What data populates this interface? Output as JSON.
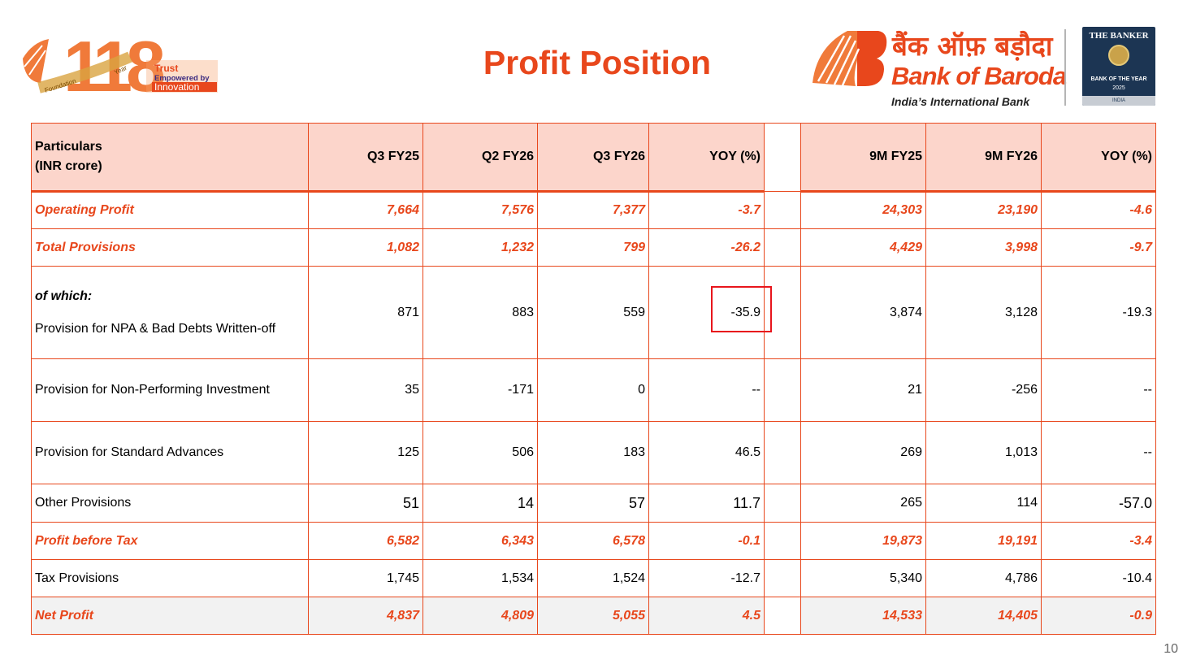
{
  "header": {
    "title": "Profit Position",
    "logo_left": {
      "number": "118",
      "words": [
        "Trust",
        "Empowered by",
        "Innovation"
      ],
      "arc_words": [
        "Foundation",
        "Year"
      ]
    },
    "bank": {
      "name_hindi": "बैंक ऑफ़ बड़ौदा",
      "name": "Bank of Baroda",
      "tagline": "India’s International Bank",
      "brand_color": "#e8471c"
    },
    "award": {
      "publisher": "THE BANKER",
      "award": "BANK OF THE YEAR",
      "year": "2025",
      "country": "INDIA"
    }
  },
  "table": {
    "columns": [
      "Q3 FY25",
      "Q2 FY26",
      "Q3 FY26",
      "YOY (%)",
      "9M FY25",
      "9M FY26",
      "YOY (%)"
    ],
    "header_label_line1": "Particulars",
    "header_label_line2": "(INR crore)",
    "rows": [
      {
        "label": "Operating Profit",
        "highlight": true,
        "values": [
          "7,664",
          "7,576",
          "7,377",
          "-3.7",
          "24,303",
          "23,190",
          "-4.6"
        ]
      },
      {
        "label": "Total Provisions",
        "highlight": true,
        "values": [
          "1,082",
          "1,232",
          "799",
          "-26.2",
          "4,429",
          "3,998",
          "-9.7"
        ]
      },
      {
        "label_prefix": "of which:",
        "label": "Provision for NPA & Bad Debts Written-off",
        "highlight": false,
        "values": [
          "871",
          "883",
          "559",
          "-35.9",
          "3,874",
          "3,128",
          "-19.3"
        ]
      },
      {
        "label": "Provision for Non-Performing Investment",
        "highlight": false,
        "values": [
          "35",
          "-171",
          "0",
          "--",
          "21",
          "-256",
          "--"
        ]
      },
      {
        "label": "Provision for Standard Advances",
        "highlight": false,
        "values": [
          "125",
          "506",
          "183",
          "46.5",
          "269",
          "1,013",
          "--"
        ]
      },
      {
        "label": "Other Provisions",
        "highlight": false,
        "values": [
          "51",
          "14",
          "57",
          "11.7",
          "265",
          "114",
          "-57.0"
        ]
      },
      {
        "label": "Profit before Tax",
        "highlight": true,
        "values": [
          "6,582",
          "6,343",
          "6,578",
          "-0.1",
          "19,873",
          "19,191",
          "-3.4"
        ]
      },
      {
        "label": "Tax Provisions",
        "highlight": false,
        "values": [
          "1,745",
          "1,534",
          "1,524",
          "-12.7",
          "5,340",
          "4,786",
          "-10.4"
        ]
      },
      {
        "label": "Net Profit",
        "highlight": true,
        "values": [
          "4,837",
          "4,809",
          "5,055",
          "4.5",
          "14,533",
          "14,405",
          "-0.9"
        ]
      }
    ]
  },
  "page_number": "10"
}
